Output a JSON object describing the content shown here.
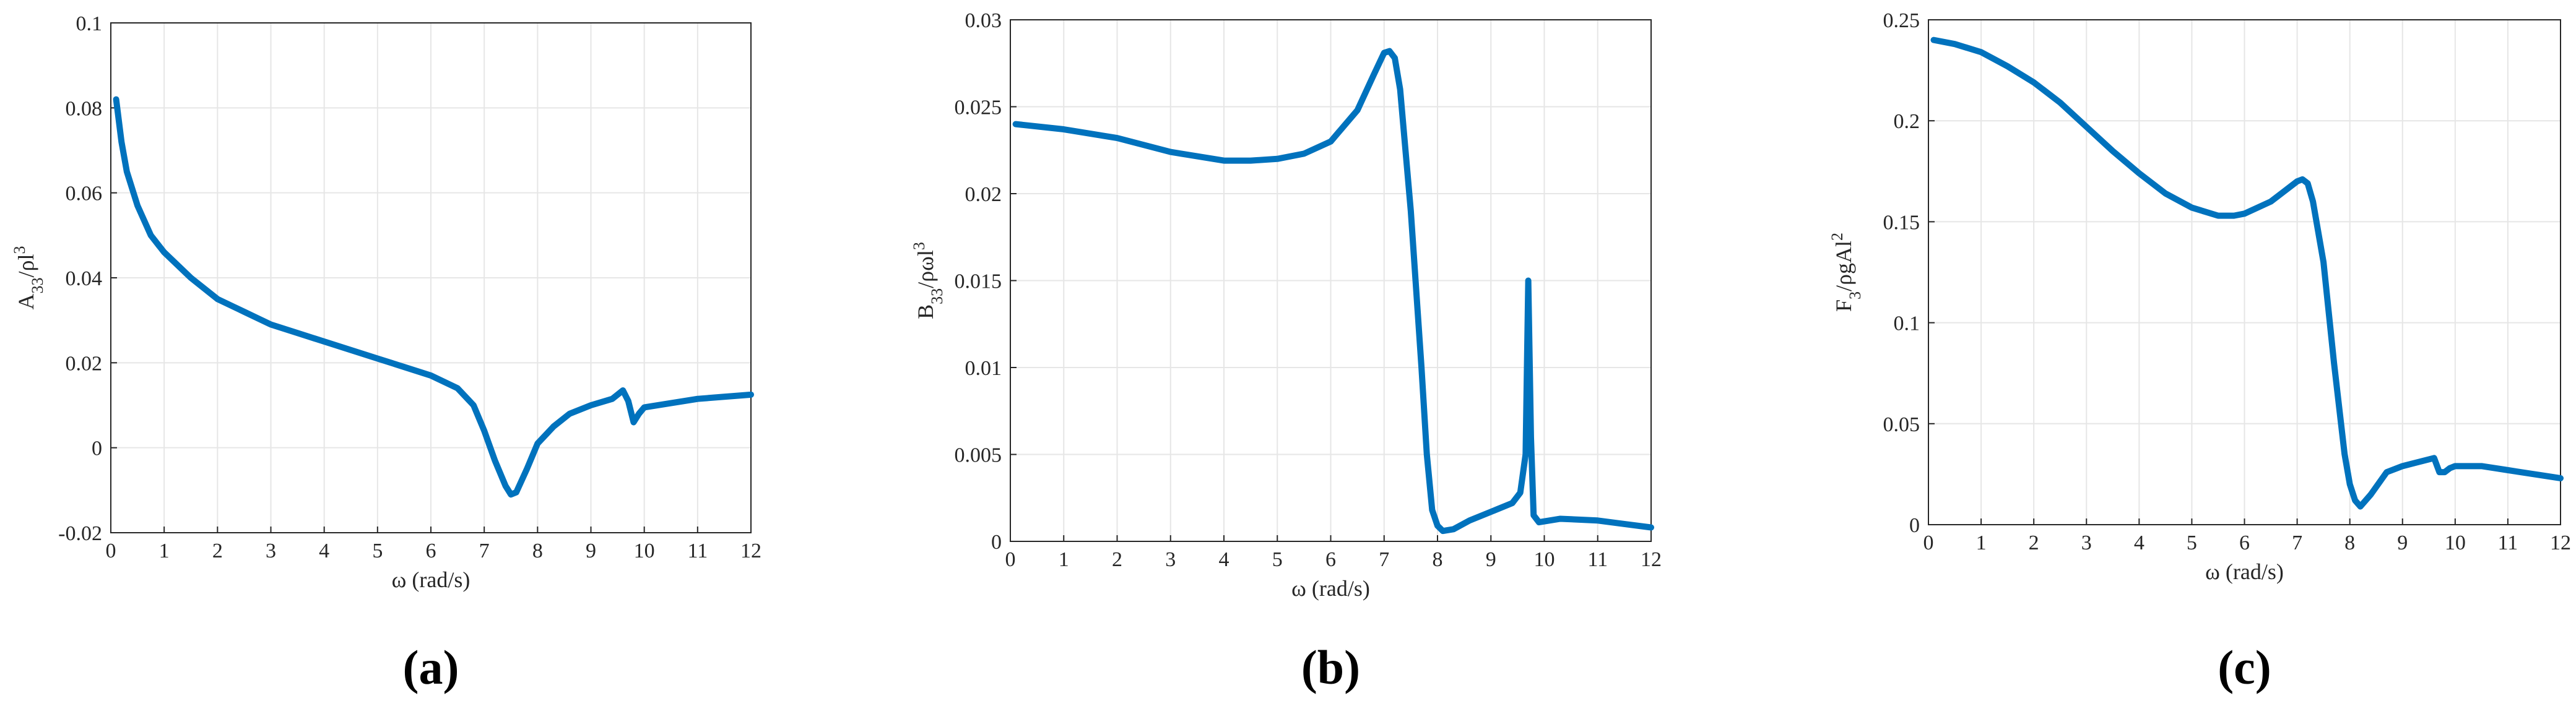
{
  "chart_data": [
    {
      "type": "line",
      "panel": "(a)",
      "xlabel": "ω (rad/s)",
      "ylabel": [
        {
          "text": "A"
        },
        {
          "text": "33",
          "shift": "sub"
        },
        {
          "text": "/ρl"
        },
        {
          "text": "3",
          "shift": "super"
        }
      ],
      "xlim": [
        0,
        12
      ],
      "ylim": [
        -0.02,
        0.1
      ],
      "xticks": [
        0,
        1,
        2,
        3,
        4,
        5,
        6,
        7,
        8,
        9,
        10,
        11,
        12
      ],
      "yticks": [
        -0.02,
        0,
        0.02,
        0.04,
        0.06,
        0.08,
        0.1
      ],
      "grid": true,
      "x": [
        0.1,
        0.2,
        0.3,
        0.5,
        0.75,
        1,
        1.5,
        2,
        2.5,
        3,
        3.5,
        4,
        4.5,
        5,
        5.5,
        6,
        6.5,
        6.8,
        7,
        7.2,
        7.4,
        7.5,
        7.6,
        7.8,
        8,
        8.3,
        8.6,
        9,
        9.4,
        9.6,
        9.7,
        9.8,
        9.9,
        10,
        10.5,
        11,
        11.5,
        12
      ],
      "series": [
        {
          "color": "#0072bd",
          "values": [
            0.082,
            0.072,
            0.065,
            0.057,
            0.05,
            0.046,
            0.04,
            0.035,
            0.032,
            0.029,
            0.027,
            0.025,
            0.023,
            0.021,
            0.019,
            0.017,
            0.014,
            0.01,
            0.004,
            -0.003,
            -0.009,
            -0.011,
            -0.0105,
            -0.005,
            0.001,
            0.005,
            0.008,
            0.01,
            0.0115,
            0.0135,
            0.011,
            0.006,
            0.008,
            0.0095,
            0.0105,
            0.0115,
            0.012,
            0.0125
          ]
        }
      ]
    },
    {
      "type": "line",
      "panel": "(b)",
      "xlabel": "ω (rad/s)",
      "ylabel": [
        {
          "text": "B"
        },
        {
          "text": "33",
          "shift": "sub"
        },
        {
          "text": "/ρωl"
        },
        {
          "text": "3",
          "shift": "super"
        }
      ],
      "xlim": [
        0,
        12
      ],
      "ylim": [
        0,
        0.03
      ],
      "xticks": [
        0,
        1,
        2,
        3,
        4,
        5,
        6,
        7,
        8,
        9,
        10,
        11,
        12
      ],
      "yticks": [
        0,
        0.005,
        0.01,
        0.015,
        0.02,
        0.025,
        0.03
      ],
      "grid": true,
      "x": [
        0.1,
        1,
        2,
        3,
        4,
        4.5,
        5,
        5.5,
        6,
        6.5,
        6.8,
        7,
        7.1,
        7.2,
        7.3,
        7.5,
        7.7,
        7.8,
        7.9,
        8,
        8.1,
        8.3,
        8.6,
        9,
        9.4,
        9.55,
        9.65,
        9.7,
        9.75,
        9.8,
        9.9,
        10.3,
        11,
        11.5,
        12
      ],
      "series": [
        {
          "color": "#0072bd",
          "values": [
            0.024,
            0.0237,
            0.0232,
            0.0224,
            0.0219,
            0.0219,
            0.022,
            0.0223,
            0.023,
            0.0248,
            0.0268,
            0.0281,
            0.0282,
            0.0278,
            0.026,
            0.019,
            0.01,
            0.005,
            0.0018,
            0.0009,
            0.0006,
            0.0007,
            0.0012,
            0.0017,
            0.0022,
            0.0028,
            0.005,
            0.015,
            0.006,
            0.0015,
            0.0011,
            0.0013,
            0.0012,
            0.001,
            0.0008
          ]
        }
      ]
    },
    {
      "type": "line",
      "panel": "(c)",
      "xlabel": "ω (rad/s)",
      "ylabel": [
        {
          "text": "F"
        },
        {
          "text": "3",
          "shift": "sub"
        },
        {
          "text": "/ρgAl"
        },
        {
          "text": "2",
          "shift": "super"
        }
      ],
      "xlim": [
        0,
        12
      ],
      "ylim": [
        0,
        0.25
      ],
      "xticks": [
        0,
        1,
        2,
        3,
        4,
        5,
        6,
        7,
        8,
        9,
        10,
        11,
        12
      ],
      "yticks": [
        0,
        0.05,
        0.1,
        0.15,
        0.2,
        0.25
      ],
      "grid": true,
      "x": [
        0.1,
        0.5,
        1,
        1.5,
        2,
        2.5,
        3,
        3.5,
        4,
        4.5,
        5,
        5.5,
        5.8,
        6,
        6.5,
        7,
        7.1,
        7.2,
        7.3,
        7.5,
        7.7,
        7.9,
        8,
        8.1,
        8.2,
        8.4,
        8.7,
        9,
        9.3,
        9.6,
        9.7,
        9.8,
        9.9,
        10,
        10.5,
        11,
        11.5,
        12
      ],
      "series": [
        {
          "color": "#0072bd",
          "values": [
            0.24,
            0.238,
            0.234,
            0.227,
            0.219,
            0.209,
            0.197,
            0.185,
            0.174,
            0.164,
            0.157,
            0.153,
            0.153,
            0.154,
            0.16,
            0.17,
            0.171,
            0.169,
            0.16,
            0.13,
            0.08,
            0.035,
            0.02,
            0.012,
            0.009,
            0.015,
            0.026,
            0.029,
            0.031,
            0.033,
            0.026,
            0.026,
            0.028,
            0.029,
            0.029,
            0.027,
            0.025,
            0.023
          ]
        }
      ]
    }
  ]
}
